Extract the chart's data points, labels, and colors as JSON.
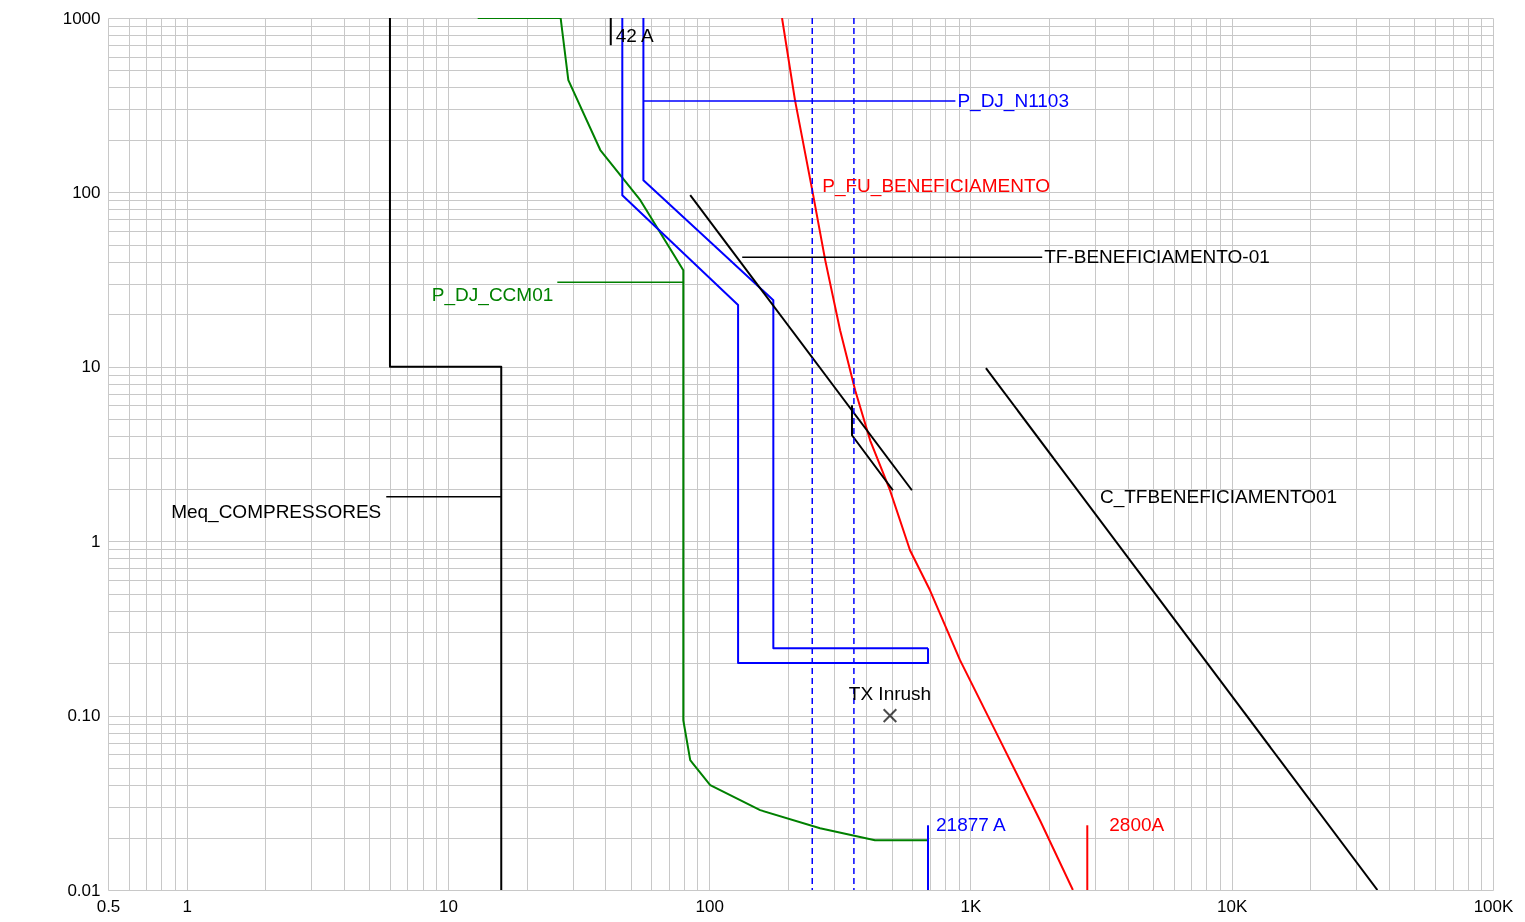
{
  "chart_data": {
    "type": "line",
    "log": "xy",
    "grid": true,
    "xlim": [
      0.5,
      100000
    ],
    "ylim": [
      0.01,
      1000
    ],
    "xticks": [
      0.5,
      1,
      10,
      100,
      {
        "value": 1000,
        "label": "1K"
      },
      {
        "value": 10000,
        "label": "10K"
      },
      {
        "value": 100000,
        "label": "100K"
      }
    ],
    "yticks": [
      {
        "value": 0.01,
        "label": "0.01"
      },
      {
        "value": 0.1,
        "label": "0.10"
      },
      1,
      10,
      100,
      1000
    ],
    "series": [
      {
        "name": "Meq_COMPRESSORES",
        "color": "#000000",
        "x": [
          6,
          6,
          16,
          16
        ],
        "values": [
          1000,
          10,
          10,
          0.01
        ]
      },
      {
        "name": "P_DJ_CCM01",
        "color": "#008000",
        "x": [
          13,
          27,
          28.9,
          38.3,
          54.5,
          79.6,
          79.6,
          84.6,
          100.9,
          156.7,
          265.7,
          431,
          688
        ],
        "values": [
          1000,
          1000,
          440,
          175,
          90.2,
          35.8,
          0.094,
          0.0555,
          0.0399,
          0.0287,
          0.0226,
          0.0193,
          0.0193
        ]
      },
      {
        "color": "#0000ff",
        "x": [
          46.5,
          46.5,
          129,
          129,
          688,
          688
        ],
        "values": [
          1000,
          96.4,
          22.6,
          0.2,
          0.2,
          0.243
        ]
      },
      {
        "name": "P_DJ_N1103",
        "color": "#0000ff",
        "x": [
          56,
          56,
          176,
          176,
          688
        ],
        "values": [
          1000,
          117.5,
          24.1,
          0.243,
          0.243
        ]
      },
      {
        "name": "P_FU_BENEFICIAMENTO",
        "color": "#ff0000",
        "x": [
          190,
          213,
          248,
          278,
          317,
          362,
          413,
          492,
          587,
          700,
          912,
          1297,
          1845,
          2466
        ],
        "values": [
          1000,
          338,
          103,
          40.9,
          16.2,
          7.34,
          3.79,
          1.96,
          0.888,
          0.523,
          0.208,
          0.0723,
          0.0251,
          0.01
        ]
      },
      {
        "name": "TF-BENEFICIAMENTO-01",
        "color": "#000000",
        "x": [
          84.6,
          597
        ],
        "values": [
          96.4,
          1.96
        ]
      },
      {
        "color": "#000000",
        "x": [
          352,
          352,
          505
        ],
        "values": [
          6.02,
          4.05,
          1.96
        ]
      },
      {
        "name": "C_TFBENEFICIAMENTO01",
        "color": "#000000",
        "x": [
          1146,
          36100
        ],
        "values": [
          9.82,
          0.01
        ]
      },
      {
        "name": "42 A",
        "color": "#000000",
        "x": [
          42,
          42
        ],
        "values": [
          1000,
          698
        ]
      },
      {
        "name": "21877 A",
        "color": "#0000ff",
        "x": [
          688,
          688
        ],
        "values": [
          0.01,
          0.0235
        ]
      },
      {
        "name": "2800A",
        "color": "#ff0000",
        "x": [
          2800,
          2800
        ],
        "values": [
          0.01,
          0.0235
        ]
      },
      {
        "name": "TX Inrush",
        "type": "scatter",
        "marker": "cross",
        "color": "#000000",
        "x": [
          492
        ],
        "values": [
          0.1
        ]
      }
    ],
    "ref_lines": [
      {
        "axis": "x",
        "value": 248,
        "color": "#0000ff",
        "line_style": "dashed"
      },
      {
        "axis": "x",
        "value": 358,
        "color": "#0000ff",
        "line_style": "dashed"
      }
    ]
  }
}
